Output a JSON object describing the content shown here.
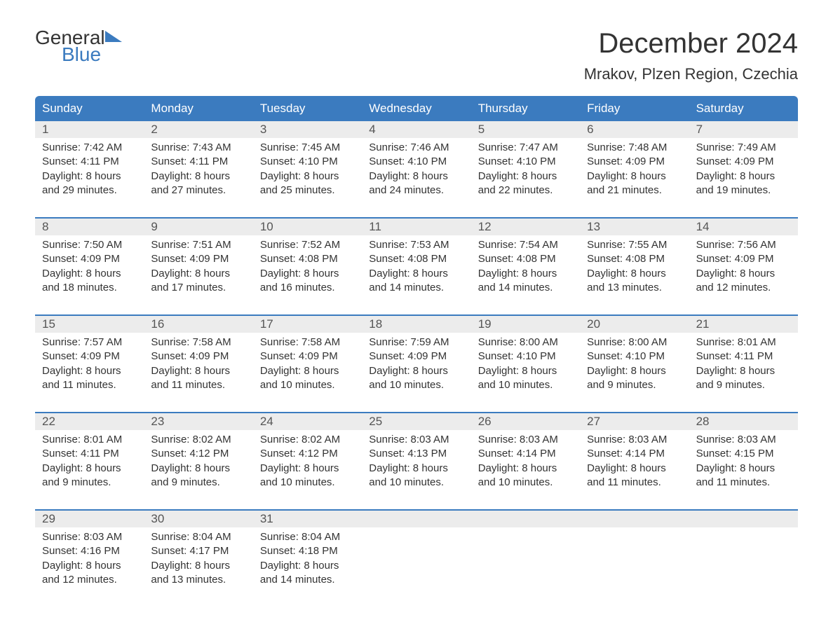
{
  "brand": {
    "general": "General",
    "blue": "Blue"
  },
  "title": "December 2024",
  "location": "Mrakov, Plzen Region, Czechia",
  "colors": {
    "header_bg": "#3b7bbf",
    "header_text": "#ffffff",
    "daynum_bg": "#ececec",
    "body_text": "#333333",
    "rule": "#3b7bbf"
  },
  "day_labels": [
    "Sunday",
    "Monday",
    "Tuesday",
    "Wednesday",
    "Thursday",
    "Friday",
    "Saturday"
  ],
  "weeks": [
    [
      {
        "n": "1",
        "sunrise": "7:42 AM",
        "sunset": "4:11 PM",
        "dl1": "Daylight: 8 hours",
        "dl2": "and 29 minutes."
      },
      {
        "n": "2",
        "sunrise": "7:43 AM",
        "sunset": "4:11 PM",
        "dl1": "Daylight: 8 hours",
        "dl2": "and 27 minutes."
      },
      {
        "n": "3",
        "sunrise": "7:45 AM",
        "sunset": "4:10 PM",
        "dl1": "Daylight: 8 hours",
        "dl2": "and 25 minutes."
      },
      {
        "n": "4",
        "sunrise": "7:46 AM",
        "sunset": "4:10 PM",
        "dl1": "Daylight: 8 hours",
        "dl2": "and 24 minutes."
      },
      {
        "n": "5",
        "sunrise": "7:47 AM",
        "sunset": "4:10 PM",
        "dl1": "Daylight: 8 hours",
        "dl2": "and 22 minutes."
      },
      {
        "n": "6",
        "sunrise": "7:48 AM",
        "sunset": "4:09 PM",
        "dl1": "Daylight: 8 hours",
        "dl2": "and 21 minutes."
      },
      {
        "n": "7",
        "sunrise": "7:49 AM",
        "sunset": "4:09 PM",
        "dl1": "Daylight: 8 hours",
        "dl2": "and 19 minutes."
      }
    ],
    [
      {
        "n": "8",
        "sunrise": "7:50 AM",
        "sunset": "4:09 PM",
        "dl1": "Daylight: 8 hours",
        "dl2": "and 18 minutes."
      },
      {
        "n": "9",
        "sunrise": "7:51 AM",
        "sunset": "4:09 PM",
        "dl1": "Daylight: 8 hours",
        "dl2": "and 17 minutes."
      },
      {
        "n": "10",
        "sunrise": "7:52 AM",
        "sunset": "4:08 PM",
        "dl1": "Daylight: 8 hours",
        "dl2": "and 16 minutes."
      },
      {
        "n": "11",
        "sunrise": "7:53 AM",
        "sunset": "4:08 PM",
        "dl1": "Daylight: 8 hours",
        "dl2": "and 14 minutes."
      },
      {
        "n": "12",
        "sunrise": "7:54 AM",
        "sunset": "4:08 PM",
        "dl1": "Daylight: 8 hours",
        "dl2": "and 14 minutes."
      },
      {
        "n": "13",
        "sunrise": "7:55 AM",
        "sunset": "4:08 PM",
        "dl1": "Daylight: 8 hours",
        "dl2": "and 13 minutes."
      },
      {
        "n": "14",
        "sunrise": "7:56 AM",
        "sunset": "4:09 PM",
        "dl1": "Daylight: 8 hours",
        "dl2": "and 12 minutes."
      }
    ],
    [
      {
        "n": "15",
        "sunrise": "7:57 AM",
        "sunset": "4:09 PM",
        "dl1": "Daylight: 8 hours",
        "dl2": "and 11 minutes."
      },
      {
        "n": "16",
        "sunrise": "7:58 AM",
        "sunset": "4:09 PM",
        "dl1": "Daylight: 8 hours",
        "dl2": "and 11 minutes."
      },
      {
        "n": "17",
        "sunrise": "7:58 AM",
        "sunset": "4:09 PM",
        "dl1": "Daylight: 8 hours",
        "dl2": "and 10 minutes."
      },
      {
        "n": "18",
        "sunrise": "7:59 AM",
        "sunset": "4:09 PM",
        "dl1": "Daylight: 8 hours",
        "dl2": "and 10 minutes."
      },
      {
        "n": "19",
        "sunrise": "8:00 AM",
        "sunset": "4:10 PM",
        "dl1": "Daylight: 8 hours",
        "dl2": "and 10 minutes."
      },
      {
        "n": "20",
        "sunrise": "8:00 AM",
        "sunset": "4:10 PM",
        "dl1": "Daylight: 8 hours",
        "dl2": "and 9 minutes."
      },
      {
        "n": "21",
        "sunrise": "8:01 AM",
        "sunset": "4:11 PM",
        "dl1": "Daylight: 8 hours",
        "dl2": "and 9 minutes."
      }
    ],
    [
      {
        "n": "22",
        "sunrise": "8:01 AM",
        "sunset": "4:11 PM",
        "dl1": "Daylight: 8 hours",
        "dl2": "and 9 minutes."
      },
      {
        "n": "23",
        "sunrise": "8:02 AM",
        "sunset": "4:12 PM",
        "dl1": "Daylight: 8 hours",
        "dl2": "and 9 minutes."
      },
      {
        "n": "24",
        "sunrise": "8:02 AM",
        "sunset": "4:12 PM",
        "dl1": "Daylight: 8 hours",
        "dl2": "and 10 minutes."
      },
      {
        "n": "25",
        "sunrise": "8:03 AM",
        "sunset": "4:13 PM",
        "dl1": "Daylight: 8 hours",
        "dl2": "and 10 minutes."
      },
      {
        "n": "26",
        "sunrise": "8:03 AM",
        "sunset": "4:14 PM",
        "dl1": "Daylight: 8 hours",
        "dl2": "and 10 minutes."
      },
      {
        "n": "27",
        "sunrise": "8:03 AM",
        "sunset": "4:14 PM",
        "dl1": "Daylight: 8 hours",
        "dl2": "and 11 minutes."
      },
      {
        "n": "28",
        "sunrise": "8:03 AM",
        "sunset": "4:15 PM",
        "dl1": "Daylight: 8 hours",
        "dl2": "and 11 minutes."
      }
    ],
    [
      {
        "n": "29",
        "sunrise": "8:03 AM",
        "sunset": "4:16 PM",
        "dl1": "Daylight: 8 hours",
        "dl2": "and 12 minutes."
      },
      {
        "n": "30",
        "sunrise": "8:04 AM",
        "sunset": "4:17 PM",
        "dl1": "Daylight: 8 hours",
        "dl2": "and 13 minutes."
      },
      {
        "n": "31",
        "sunrise": "8:04 AM",
        "sunset": "4:18 PM",
        "dl1": "Daylight: 8 hours",
        "dl2": "and 14 minutes."
      },
      null,
      null,
      null,
      null
    ]
  ],
  "labels": {
    "sunrise_prefix": "Sunrise: ",
    "sunset_prefix": "Sunset: "
  }
}
